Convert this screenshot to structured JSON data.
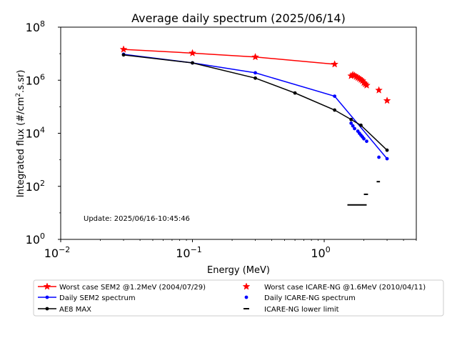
{
  "chart_data": {
    "type": "scatter",
    "title": "Average daily spectrum (2025/06/14)",
    "xlabel": "Energy (MeV)",
    "ylabel_main": "Integrated flux (#/cm",
    "ylabel_sup": "2",
    "ylabel_tail": ".s.sr)",
    "xscale": "log",
    "yscale": "log",
    "xlim": [
      0.01,
      5
    ],
    "ylim": [
      1,
      100000000
    ],
    "x_ticks": [
      {
        "value": 0.01,
        "base": "10",
        "exp": "−2"
      },
      {
        "value": 0.1,
        "base": "10",
        "exp": "−1"
      },
      {
        "value": 1,
        "base": "10",
        "exp": "0"
      }
    ],
    "y_ticks": [
      {
        "value": 1,
        "base": "10",
        "exp": "0"
      },
      {
        "value": 100,
        "base": "10",
        "exp": "2"
      },
      {
        "value": 10000,
        "base": "10",
        "exp": "4"
      },
      {
        "value": 1000000,
        "base": "10",
        "exp": "6"
      },
      {
        "value": 100000000,
        "base": "10",
        "exp": "8"
      }
    ],
    "annotation": "Update: 2025/06/16-10:45:46",
    "grid": false,
    "legend_position": "bottom",
    "series": [
      {
        "name": "Worst case SEM2 @1.2MeV (2004/07/29)",
        "color": "#ff0000",
        "style": "line",
        "marker": "star",
        "x": [
          0.03,
          0.1,
          0.3,
          1.2
        ],
        "y": [
          14500000,
          10500000,
          7500000,
          4000000
        ]
      },
      {
        "name": "Daily SEM2 spectrum",
        "color": "#0000ff",
        "style": "line",
        "marker": "dot",
        "x": [
          0.03,
          0.1,
          0.3,
          1.2,
          3.0
        ],
        "y": [
          9500000,
          4500000,
          1900000,
          250000,
          1100
        ]
      },
      {
        "name": "AE8 MAX",
        "color": "#000000",
        "style": "line",
        "marker": "dot",
        "x": [
          0.03,
          0.1,
          0.3,
          0.6,
          1.2,
          1.6,
          1.9,
          3.0
        ],
        "y": [
          9000000,
          4500000,
          1200000,
          330000,
          75000,
          33000,
          20000,
          2300
        ]
      },
      {
        "name": "Worst case ICARE-NG @1.6MeV (2010/04/11)",
        "color": "#ff0000",
        "style": "scatter",
        "marker": "star",
        "x": [
          1.6,
          1.65,
          1.7,
          1.75,
          1.8,
          1.85,
          1.9,
          1.95,
          2.0,
          2.05,
          2.1,
          2.6,
          3.0
        ],
        "y": [
          1450000,
          1600000,
          1500000,
          1350000,
          1250000,
          1150000,
          1050000,
          950000,
          800000,
          720000,
          640000,
          420000,
          170000
        ]
      },
      {
        "name": "Daily ICARE-NG spectrum",
        "color": "#0000ff",
        "style": "scatter",
        "marker": "dot",
        "x": [
          1.6,
          1.65,
          1.7,
          1.8,
          1.85,
          1.9,
          1.95,
          2.0,
          2.1,
          2.6
        ],
        "y": [
          24000,
          19000,
          15000,
          12000,
          10000,
          8500,
          7300,
          6200,
          5000,
          1250
        ]
      },
      {
        "name": "ICARE-NG lower limit",
        "color": "#000000",
        "style": "hbar",
        "marker": "dash",
        "segments": [
          {
            "x0": 1.5,
            "x1": 2.1,
            "y": 20
          },
          {
            "x0": 2.0,
            "x1": 2.15,
            "y": 50
          },
          {
            "x0": 2.5,
            "x1": 2.65,
            "y": 150
          }
        ]
      }
    ]
  }
}
